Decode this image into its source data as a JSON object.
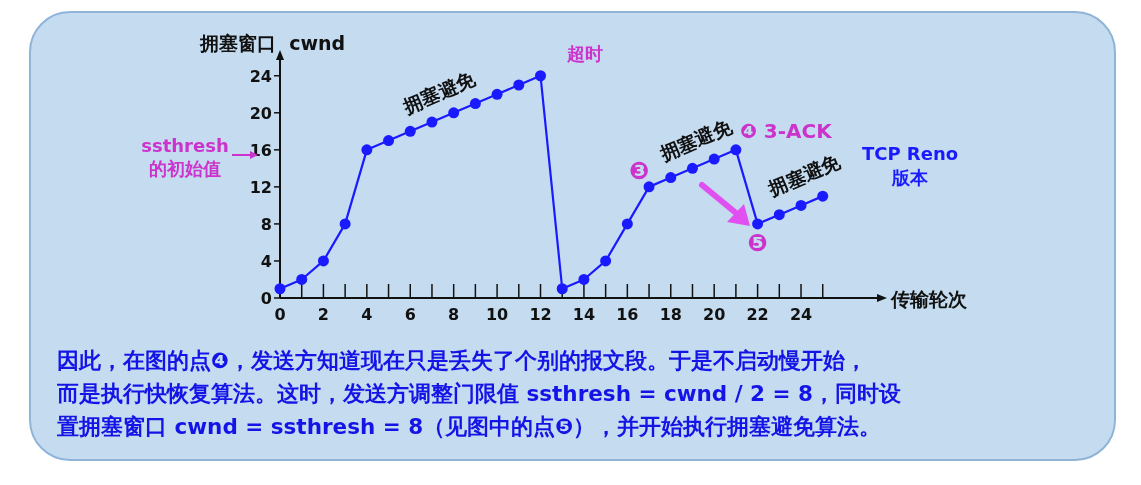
{
  "chart_data": {
    "type": "line",
    "xlabel": "传输轮次",
    "ylabel": "拥塞窗口  cwnd",
    "x": [
      0,
      1,
      2,
      3,
      4,
      5,
      6,
      7,
      8,
      9,
      10,
      11,
      12,
      13,
      14,
      15,
      16,
      17,
      18,
      19,
      20,
      21,
      22,
      23,
      24,
      25
    ],
    "series": [
      {
        "color": "#1a1aff",
        "values": [
          1,
          2,
          4,
          8,
          16,
          17,
          18,
          19,
          20,
          21,
          22,
          23,
          24,
          1,
          2,
          4,
          8,
          12,
          13,
          14,
          15,
          16,
          8,
          9,
          10,
          11
        ]
      }
    ],
    "marker": "circle",
    "line_style": "solid",
    "grid": false,
    "xlim": [
      0,
      27.5
    ],
    "ylim": [
      0,
      25.7
    ],
    "xticks": [
      0,
      {
        "value": 1,
        "label": null
      },
      2,
      {
        "value": 3,
        "label": null
      },
      4,
      {
        "value": 5,
        "label": null
      },
      6,
      {
        "value": 7,
        "label": null
      },
      8,
      {
        "value": 9,
        "label": null
      },
      10,
      {
        "value": 11,
        "label": null
      },
      12,
      {
        "value": 13,
        "label": null
      },
      14,
      {
        "value": 15,
        "label": null
      },
      16,
      {
        "value": 17,
        "label": null
      },
      18,
      {
        "value": 19,
        "label": null
      },
      20,
      {
        "value": 21,
        "label": null
      },
      22,
      {
        "value": 23,
        "label": null
      },
      24,
      {
        "value": 25,
        "label": null
      }
    ],
    "yticks": [
      0,
      4,
      8,
      12,
      16,
      20,
      24
    ],
    "annotations": [
      {
        "text": "超时",
        "x": 12,
        "y": 24
      },
      {
        "text": "拥塞避免",
        "x": 8,
        "y": 20
      },
      {
        "text": "拥塞避免",
        "x": 19,
        "y": 14
      },
      {
        "text": "拥塞避免",
        "x": 24,
        "y": 10
      },
      {
        "text": "❸",
        "x": 17,
        "y": 12
      },
      {
        "text": "❹ 3-ACK",
        "x": 21,
        "y": 16
      },
      {
        "text": "❺",
        "x": 22,
        "y": 8
      },
      "ssthresh\n的初始值",
      "TCP Reno\n版本",
      "因此，在图的点❹，发送方知道现在只是丢失了个别的报文段。于是不启动慢开始，",
      "而是执行快恢复算法。这时，发送方调整门限值 ssthresh = cwnd / 2 = 8，同时设",
      "置拥塞窗口 cwnd = ssthresh = 8（见图中的点❺），并开始执行拥塞避免算法。"
    ]
  }
}
